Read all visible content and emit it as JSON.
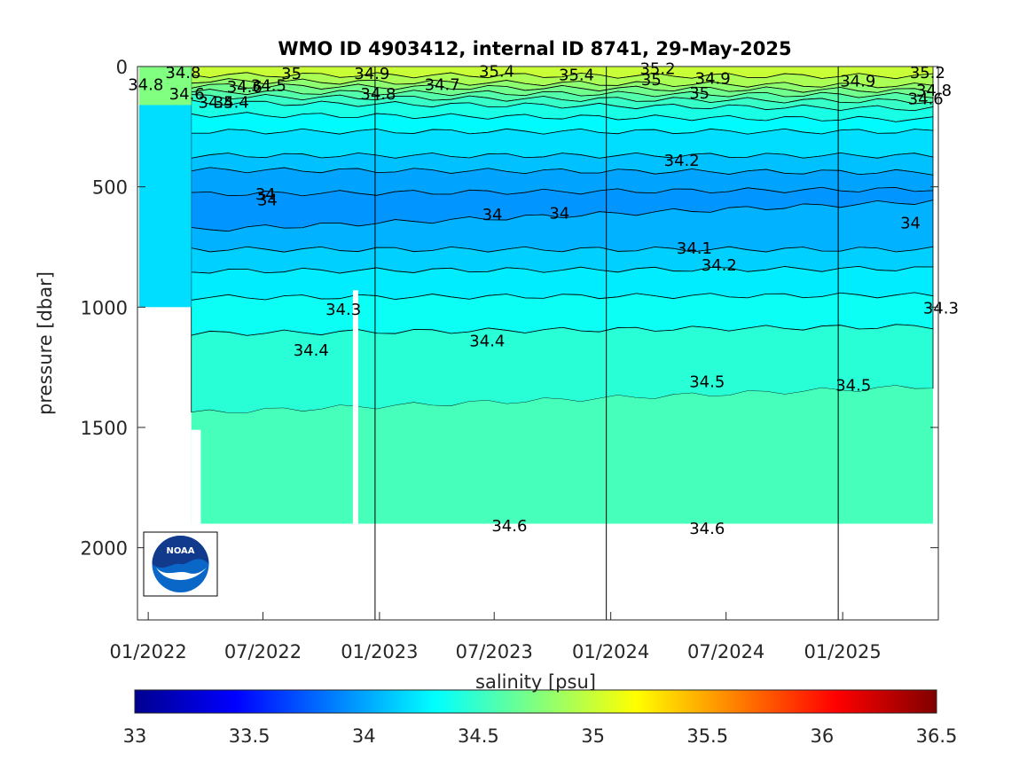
{
  "chart_data": {
    "type": "contour",
    "title": "WMO ID 4903412, internal ID 8741, 29-May-2025",
    "ylabel": "pressure [dbar]",
    "colorbar_label": "salinity [psu]",
    "x_range": [
      "2021-12-15",
      "2025-06-01"
    ],
    "y_range": [
      0,
      2300
    ],
    "y_reversed": true,
    "x_ticks": [
      {
        "date": "2022-01-01",
        "label": "01/2022"
      },
      {
        "date": "2022-07-01",
        "label": "07/2022"
      },
      {
        "date": "2023-01-01",
        "label": "01/2023"
      },
      {
        "date": "2023-07-01",
        "label": "07/2023"
      },
      {
        "date": "2024-01-01",
        "label": "01/2024"
      },
      {
        "date": "2024-07-01",
        "label": "07/2024"
      },
      {
        "date": "2025-01-01",
        "label": "01/2025"
      }
    ],
    "y_ticks": [
      {
        "value": 0,
        "label": "0"
      },
      {
        "value": 500,
        "label": "500"
      },
      {
        "value": 1000,
        "label": "1000"
      },
      {
        "value": 1500,
        "label": "1500"
      },
      {
        "value": 2000,
        "label": "2000"
      }
    ],
    "colorbar": {
      "min": 33,
      "max": 36.5,
      "colormap": "jet",
      "ticks": [
        {
          "value": 33,
          "label": "33"
        },
        {
          "value": 33.5,
          "label": "33.5"
        },
        {
          "value": 34,
          "label": "34"
        },
        {
          "value": 34.5,
          "label": "34.5"
        },
        {
          "value": 35,
          "label": "35"
        },
        {
          "value": 35.5,
          "label": "35.5"
        },
        {
          "value": 36,
          "label": "36"
        },
        {
          "value": 36.5,
          "label": "36.5"
        }
      ]
    },
    "vertical_lines": [
      "2022-12-25",
      "2023-12-25",
      "2024-12-25"
    ],
    "profile_start": "2022-03-10",
    "max_pressure": 1900,
    "layers": [
      {
        "salinity": 35.0,
        "depth": [
          35,
          40
        ]
      },
      {
        "salinity": 34.9,
        "depth": [
          60,
          80
        ]
      },
      {
        "salinity": 34.8,
        "depth": [
          80,
          100
        ]
      },
      {
        "salinity": 34.7,
        "depth": [
          105,
          120
        ]
      },
      {
        "salinity": 34.6,
        "depth": [
          125,
          145
        ]
      },
      {
        "salinity": 34.5,
        "depth": [
          150,
          175
        ]
      },
      {
        "salinity": 34.4,
        "depth": [
          200,
          220
        ]
      },
      {
        "salinity": 34.3,
        "depth": [
          270,
          270
        ]
      },
      {
        "salinity": 34.2,
        "depth": [
          370,
          370
        ]
      },
      {
        "salinity": 34.1,
        "depth": [
          430,
          440
        ]
      },
      {
        "salinity": 34.0,
        "depth": [
          530,
          510
        ]
      },
      {
        "salinity": 33.95,
        "depth": [
          680,
          560
        ]
      },
      {
        "salinity": 34.05,
        "depth": [
          760,
          760
        ]
      },
      {
        "salinity": 34.15,
        "depth": [
          850,
          840
        ]
      },
      {
        "salinity": 34.25,
        "depth": [
          960,
          950
        ]
      },
      {
        "salinity": 34.35,
        "depth": [
          1110,
          1080
        ]
      },
      {
        "salinity": 34.45,
        "depth": [
          1440,
          1330
        ]
      },
      {
        "salinity": 34.55,
        "depth": [
          1900,
          1900
        ]
      }
    ],
    "contour_labels": [
      {
        "text": "34.8",
        "date": "2021-12-28",
        "p": 75
      },
      {
        "text": "34.8",
        "date": "2022-02-25",
        "p": 25
      },
      {
        "text": "34.6",
        "date": "2022-03-03",
        "p": 115
      },
      {
        "text": "34.5",
        "date": "2022-04-18",
        "p": 150
      },
      {
        "text": "34.4",
        "date": "2022-05-12",
        "p": 150
      },
      {
        "text": "34.6",
        "date": "2022-06-02",
        "p": 85
      },
      {
        "text": "34.5",
        "date": "2022-07-10",
        "p": 80
      },
      {
        "text": "35",
        "date": "2022-08-15",
        "p": 30
      },
      {
        "text": "34.9",
        "date": "2022-12-20",
        "p": 30
      },
      {
        "text": "34.8",
        "date": "2022-12-30",
        "p": 115
      },
      {
        "text": "34.7",
        "date": "2023-04-10",
        "p": 75
      },
      {
        "text": "35.4",
        "date": "2023-07-05",
        "p": 20
      },
      {
        "text": "35.4",
        "date": "2023-11-08",
        "p": 35
      },
      {
        "text": "35.2",
        "date": "2024-03-15",
        "p": 10
      },
      {
        "text": "35",
        "date": "2024-03-05",
        "p": 55
      },
      {
        "text": "34.9",
        "date": "2024-06-10",
        "p": 50
      },
      {
        "text": "35",
        "date": "2024-05-20",
        "p": 110
      },
      {
        "text": "34.9",
        "date": "2025-01-25",
        "p": 60
      },
      {
        "text": "35.2",
        "date": "2025-05-15",
        "p": 25
      },
      {
        "text": "34.8",
        "date": "2025-05-25",
        "p": 100
      },
      {
        "text": "34.6",
        "date": "2025-05-12",
        "p": 135
      },
      {
        "text": "34.2",
        "date": "2024-04-22",
        "p": 390
      },
      {
        "text": "34",
        "date": "2022-07-05",
        "p": 530
      },
      {
        "text": "34",
        "date": "2022-07-08",
        "p": 555
      },
      {
        "text": "34",
        "date": "2023-06-28",
        "p": 615
      },
      {
        "text": "34",
        "date": "2023-10-12",
        "p": 610
      },
      {
        "text": "34",
        "date": "2025-04-18",
        "p": 650
      },
      {
        "text": "34.1",
        "date": "2024-05-12",
        "p": 755
      },
      {
        "text": "34.2",
        "date": "2024-06-20",
        "p": 825
      },
      {
        "text": "34.3",
        "date": "2022-11-05",
        "p": 1010
      },
      {
        "text": "34.3",
        "date": "2025-06-05",
        "p": 1005
      },
      {
        "text": "34.4",
        "date": "2022-09-15",
        "p": 1180
      },
      {
        "text": "34.4",
        "date": "2023-06-20",
        "p": 1140
      },
      {
        "text": "34.5",
        "date": "2024-06-01",
        "p": 1310
      },
      {
        "text": "34.5",
        "date": "2025-01-18",
        "p": 1325
      },
      {
        "text": "34.6",
        "date": "2023-07-25",
        "p": 1910
      },
      {
        "text": "34.6",
        "date": "2024-06-01",
        "p": 1920
      }
    ]
  }
}
